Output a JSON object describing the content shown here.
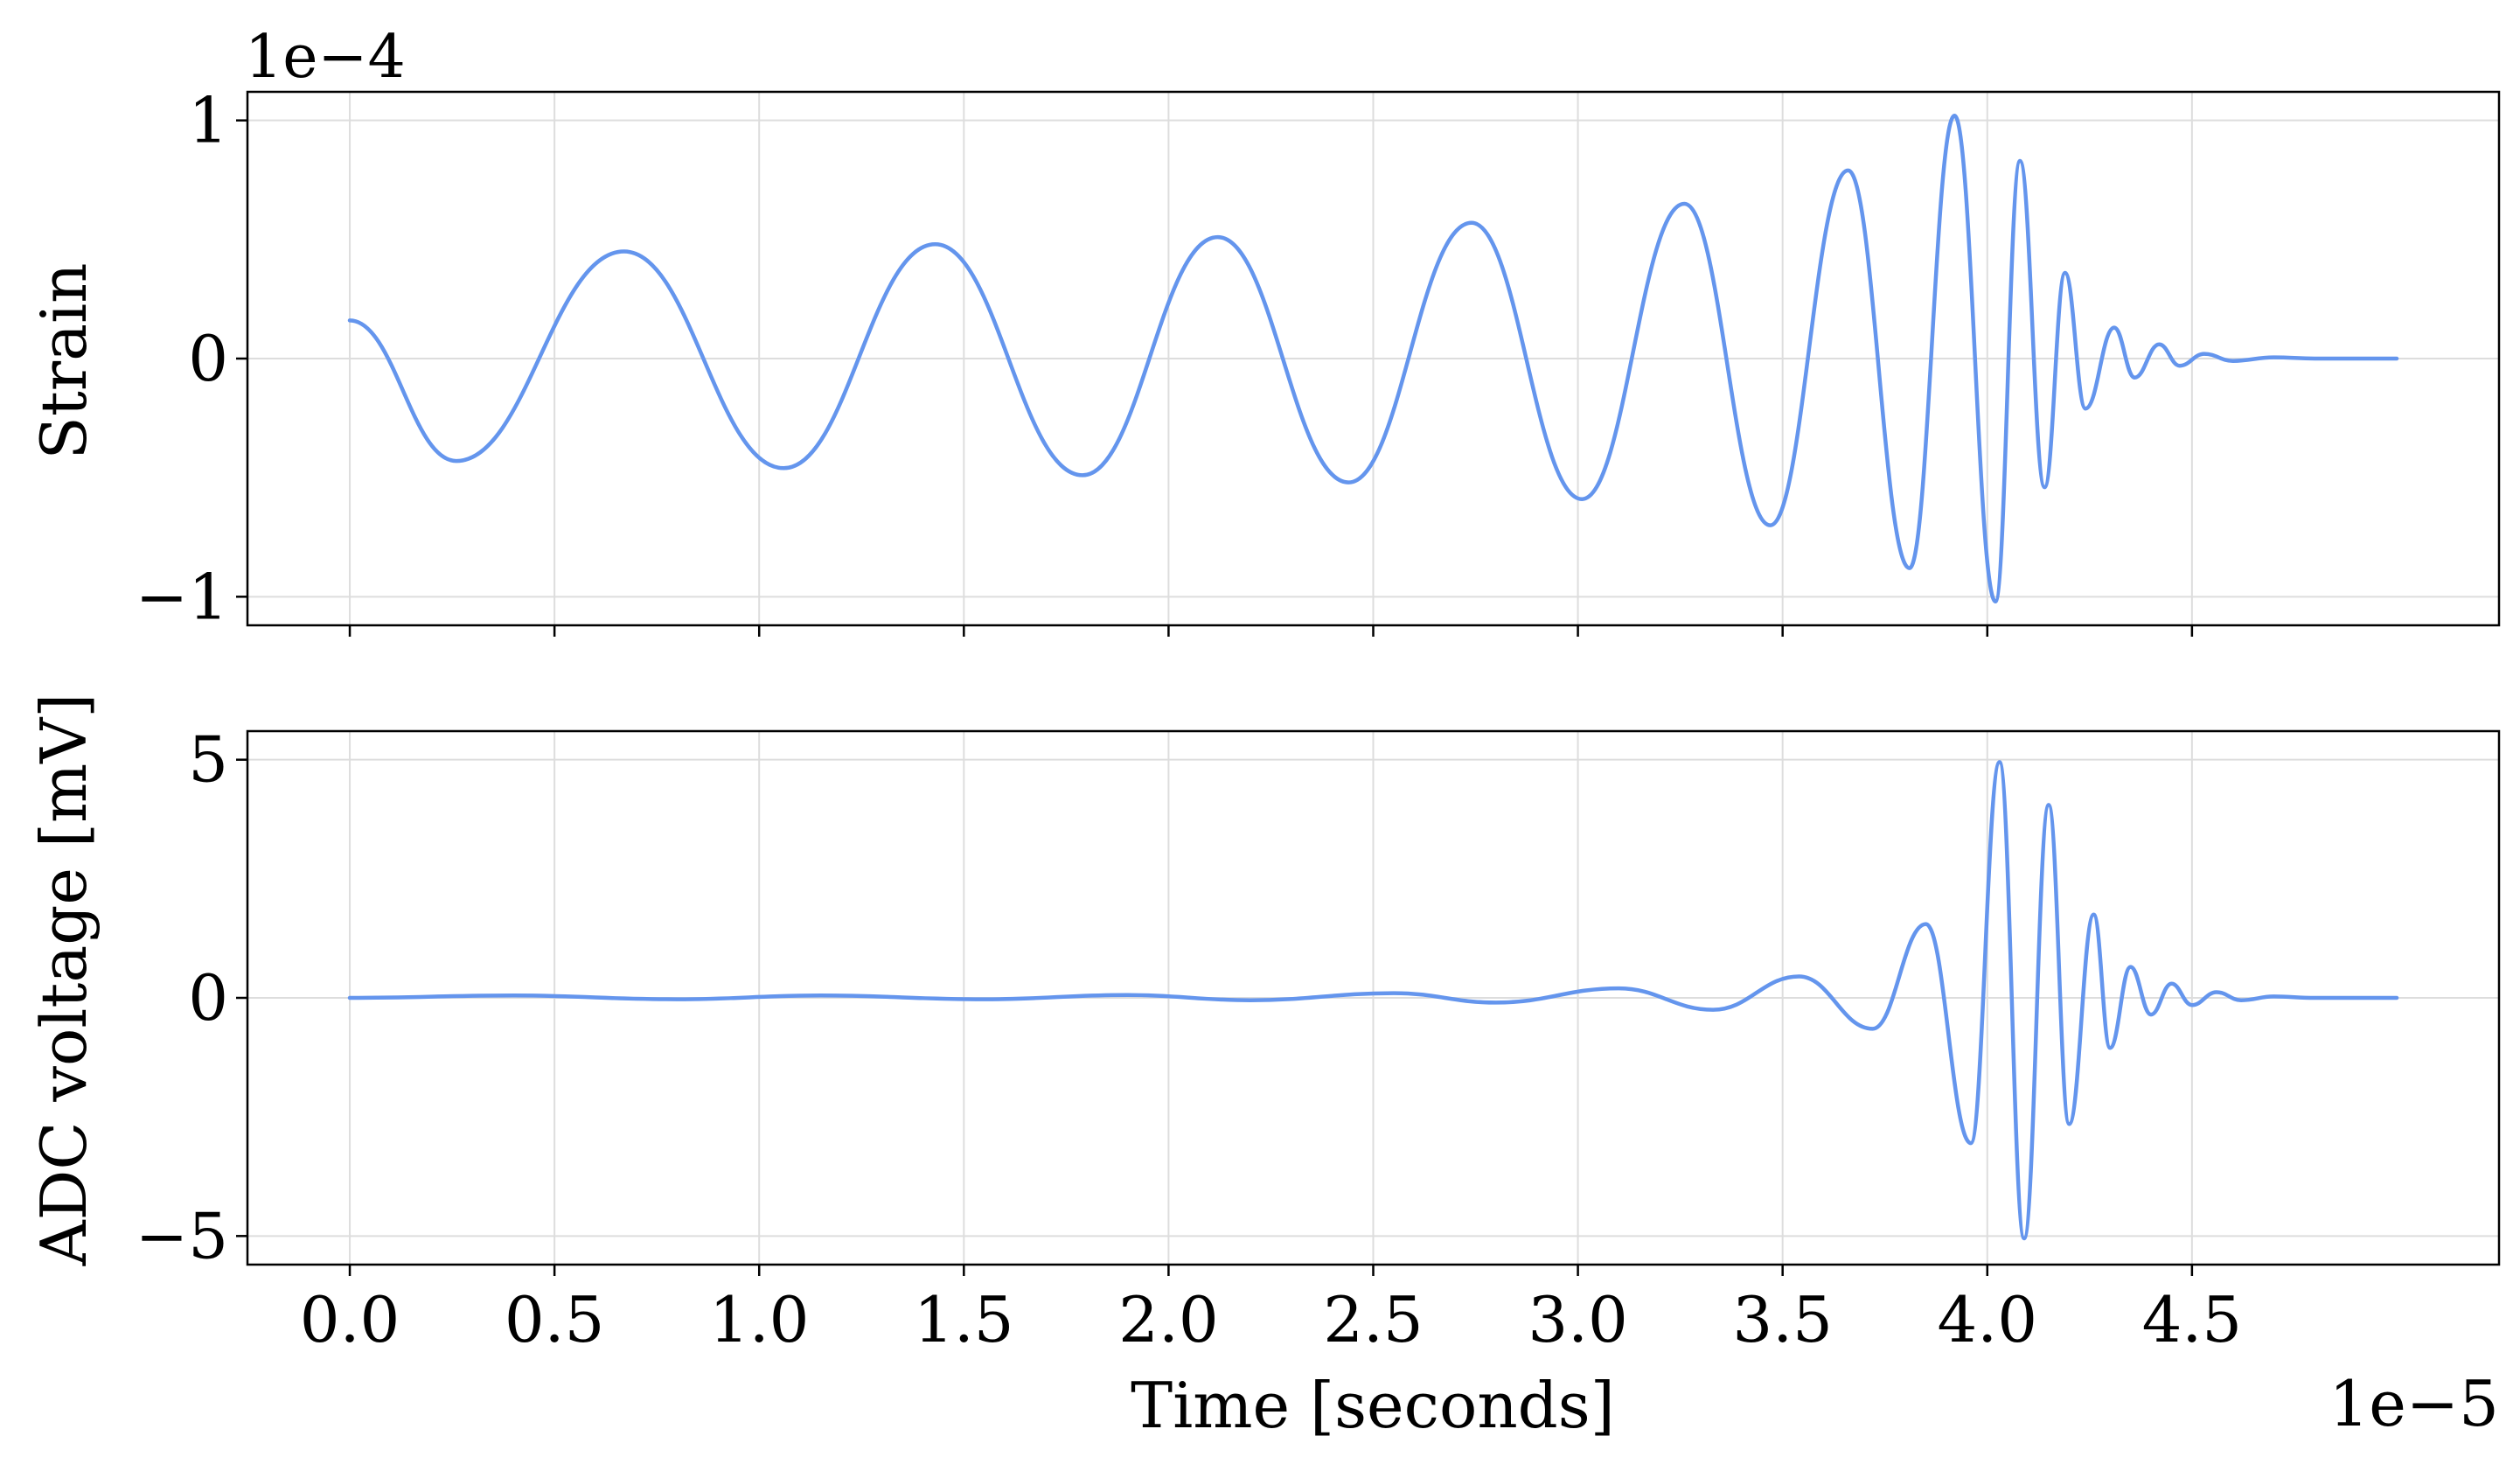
{
  "figure": {
    "line_color": "#6495ED",
    "grid_color": "#dddddd",
    "axis_color": "#000000",
    "shared_xlabel": "Time [seconds]",
    "shared_x_offset_text": "1e−5"
  },
  "chart_data": [
    {
      "type": "line",
      "title": "",
      "xlabel": "",
      "ylabel": "Strain",
      "y_offset_text": "1e−4",
      "x_scale_note": "x values in units of 1e-5 seconds",
      "y_scale_note": "y values in units of 1e-4",
      "xlim": [
        -0.25,
        5.25
      ],
      "ylim": [
        -1.12,
        1.12
      ],
      "grid": true,
      "xticks": [
        0.0,
        0.5,
        1.0,
        1.5,
        2.0,
        2.5,
        3.0,
        3.5,
        4.0,
        4.5
      ],
      "yticks": [
        -1,
        0,
        1
      ],
      "ytick_labels": [
        "−1",
        "0",
        "1"
      ],
      "series": [
        {
          "x": [
            0.0,
            0.26,
            0.67,
            1.06,
            1.43,
            1.79,
            2.12,
            2.44,
            2.74,
            3.01,
            3.26,
            3.47,
            3.66,
            3.81,
            3.92,
            4.02,
            4.08,
            4.14,
            4.19,
            4.24,
            4.31,
            4.36,
            4.42,
            4.47,
            4.53,
            4.6,
            4.7,
            4.8,
            5.0
          ],
          "y": [
            0.16,
            -0.43,
            0.45,
            -0.46,
            0.48,
            -0.49,
            0.51,
            -0.52,
            0.57,
            -0.59,
            0.65,
            -0.7,
            0.79,
            -0.88,
            1.02,
            -1.02,
            0.83,
            -0.54,
            0.36,
            -0.21,
            0.13,
            -0.08,
            0.06,
            -0.03,
            0.02,
            -0.01,
            0.005,
            0.0,
            0.0
          ]
        }
      ]
    },
    {
      "type": "line",
      "title": "",
      "xlabel": "Time [seconds]",
      "ylabel": "ADC voltage [mV]",
      "x_offset_text": "1e−5",
      "x_scale_note": "x values in units of 1e-5 seconds",
      "xlim": [
        -0.25,
        5.25
      ],
      "ylim": [
        -5.6,
        5.6
      ],
      "grid": true,
      "xticks": [
        0.0,
        0.5,
        1.0,
        1.5,
        2.0,
        2.5,
        3.0,
        3.5,
        4.0,
        4.5
      ],
      "xtick_labels": [
        "0.0",
        "0.5",
        "1.0",
        "1.5",
        "2.0",
        "2.5",
        "3.0",
        "3.5",
        "4.0",
        "4.5"
      ],
      "yticks": [
        -5,
        0,
        5
      ],
      "ytick_labels": [
        "−5",
        "0",
        "5"
      ],
      "series": [
        {
          "x": [
            0.0,
            0.4,
            0.8,
            1.15,
            1.55,
            1.9,
            2.2,
            2.55,
            2.8,
            3.1,
            3.33,
            3.54,
            3.72,
            3.85,
            3.96,
            4.03,
            4.09,
            4.15,
            4.2,
            4.26,
            4.3,
            4.35,
            4.4,
            4.45,
            4.5,
            4.56,
            4.62,
            4.7,
            4.8,
            5.0
          ],
          "y": [
            0.0,
            0.05,
            -0.03,
            0.05,
            -0.03,
            0.06,
            -0.05,
            0.1,
            -0.1,
            0.2,
            -0.25,
            0.45,
            -0.65,
            1.55,
            -3.05,
            4.95,
            -5.05,
            4.05,
            -2.65,
            1.75,
            -1.05,
            0.65,
            -0.35,
            0.3,
            -0.15,
            0.12,
            -0.05,
            0.03,
            0.0,
            0.0
          ]
        }
      ]
    }
  ]
}
